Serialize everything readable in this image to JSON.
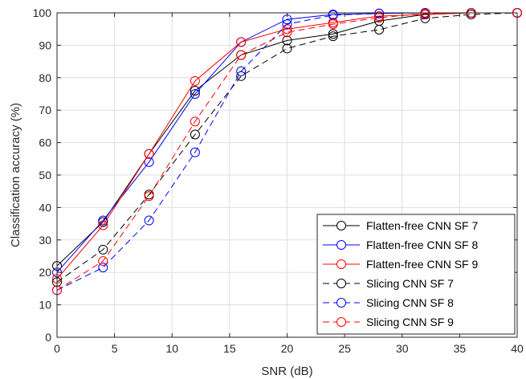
{
  "chart_data": {
    "type": "line",
    "title": "",
    "xlabel": "SNR (dB)",
    "ylabel": "Classification accuracy (%)",
    "xlim": [
      0,
      40
    ],
    "ylim": [
      0,
      100
    ],
    "xticks": [
      0,
      5,
      10,
      15,
      20,
      25,
      30,
      35,
      40
    ],
    "yticks": [
      0,
      10,
      20,
      30,
      40,
      50,
      60,
      70,
      80,
      90,
      100
    ],
    "grid": true,
    "legend_position": "bottom-right",
    "x": [
      0,
      4,
      8,
      12,
      16,
      20,
      24,
      28,
      32,
      36,
      40
    ],
    "series": [
      {
        "name": "Flatten-free CNN SF 7",
        "color": "#000000",
        "dash": "solid",
        "marker": "circle",
        "values": [
          22,
          35.5,
          56.5,
          76,
          87,
          91.5,
          93.5,
          97.5,
          99.5,
          100,
          100
        ]
      },
      {
        "name": "Flatten-free CNN SF 8",
        "color": "#0000ff",
        "dash": "solid",
        "marker": "circle",
        "values": [
          20,
          36,
          54,
          75,
          91,
          98,
          99.5,
          99.8,
          100,
          100,
          100
        ]
      },
      {
        "name": "Flatten-free CNN SF 9",
        "color": "#ff0000",
        "dash": "solid",
        "marker": "circle",
        "values": [
          18,
          34.5,
          56.5,
          79,
          91,
          95,
          97,
          99,
          99.5,
          100,
          100
        ]
      },
      {
        "name": "Slicing CNN SF 7",
        "color": "#000000",
        "dash": "dashed",
        "marker": "circle",
        "values": [
          17,
          27,
          44,
          62.5,
          80.5,
          89,
          92.8,
          94.8,
          98.3,
          99.5,
          100
        ]
      },
      {
        "name": "Slicing CNN SF 8",
        "color": "#0000ff",
        "dash": "dashed",
        "marker": "circle",
        "values": [
          14.5,
          21.5,
          36,
          57,
          82,
          96.5,
          99.3,
          99.8,
          100,
          100,
          100
        ]
      },
      {
        "name": "Slicing CNN SF 9",
        "color": "#ff0000",
        "dash": "dashed",
        "marker": "circle",
        "values": [
          14.5,
          23.5,
          43.5,
          66.5,
          87,
          94,
          96.5,
          98.5,
          99.8,
          100,
          100
        ]
      }
    ]
  }
}
